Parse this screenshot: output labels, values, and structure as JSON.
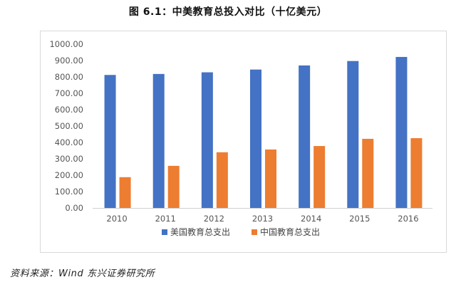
{
  "title": "图 6.1：中美教育总投入对比（十亿美元）",
  "source": "资料来源：Wind  东兴证券研究所",
  "chart_data": {
    "type": "bar",
    "categories": [
      "2010",
      "2011",
      "2012",
      "2013",
      "2014",
      "2015",
      "2016"
    ],
    "series": [
      {
        "name": "美国教育总支出",
        "color": "#4472C4",
        "values": [
          812,
          818,
          828,
          845,
          870,
          897,
          922
        ]
      },
      {
        "name": "中国教育总支出",
        "color": "#ED7D31",
        "values": [
          188,
          257,
          340,
          357,
          378,
          422,
          426
        ]
      }
    ],
    "y_ticks": [
      "0.00",
      "100.00",
      "200.00",
      "300.00",
      "400.00",
      "500.00",
      "600.00",
      "700.00",
      "800.00",
      "900.00",
      "1000.00"
    ],
    "ylim": [
      0,
      1000
    ],
    "grid": false,
    "legend_position": "bottom"
  }
}
